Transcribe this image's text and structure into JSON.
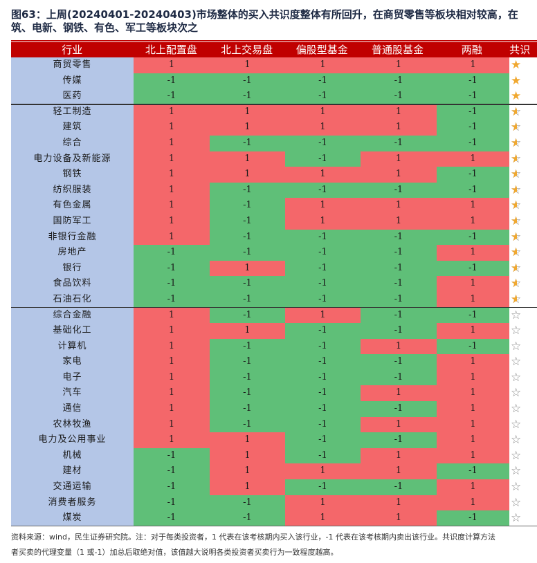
{
  "title": {
    "line1": "图63：上周(20240401-20240403)市场整体的买入共识度整体有所回升，在商贸零售等板块相对较高，在",
    "line2": "筑、电新、钢铁、有色、军工等板块次之"
  },
  "headers": [
    "行业",
    "北上配置盘",
    "北上交易盘",
    "偏股型基金",
    "普通股基金",
    "两融",
    "共识"
  ],
  "rows": [
    {
      "name": "商贸零售",
      "values": [
        "1",
        "1",
        "1",
        "1",
        "1"
      ],
      "star": "full"
    },
    {
      "name": "传媒",
      "values": [
        "-1",
        "-1",
        "-1",
        "-1",
        "-1"
      ],
      "star": "full"
    },
    {
      "name": "医药",
      "values": [
        "-1",
        "-1",
        "-1",
        "-1",
        "-1"
      ],
      "star": "full"
    },
    {
      "name": "轻工制造",
      "values": [
        "1",
        "1",
        "1",
        "1",
        "-1"
      ],
      "star": "half"
    },
    {
      "name": "建筑",
      "values": [
        "1",
        "1",
        "1",
        "1",
        "-1"
      ],
      "star": "half"
    },
    {
      "name": "综合",
      "values": [
        "1",
        "-1",
        "-1",
        "-1",
        "-1"
      ],
      "star": "half"
    },
    {
      "name": "电力设备及新能源",
      "values": [
        "1",
        "1",
        "-1",
        "1",
        "1"
      ],
      "star": "half"
    },
    {
      "name": "钢铁",
      "values": [
        "1",
        "1",
        "1",
        "1",
        "-1"
      ],
      "star": "half"
    },
    {
      "name": "纺织服装",
      "values": [
        "1",
        "-1",
        "-1",
        "-1",
        "-1"
      ],
      "star": "half"
    },
    {
      "name": "有色金属",
      "values": [
        "1",
        "-1",
        "1",
        "1",
        "1"
      ],
      "star": "half"
    },
    {
      "name": "国防军工",
      "values": [
        "1",
        "-1",
        "1",
        "1",
        "1"
      ],
      "star": "half"
    },
    {
      "name": "非银行金融",
      "values": [
        "1",
        "-1",
        "-1",
        "-1",
        "-1"
      ],
      "star": "half"
    },
    {
      "name": "房地产",
      "values": [
        "-1",
        "-1",
        "-1",
        "-1",
        "1"
      ],
      "star": "half"
    },
    {
      "name": "银行",
      "values": [
        "-1",
        "1",
        "-1",
        "-1",
        "-1"
      ],
      "star": "half"
    },
    {
      "name": "食品饮料",
      "values": [
        "-1",
        "-1",
        "-1",
        "-1",
        "1"
      ],
      "star": "half"
    },
    {
      "name": "石油石化",
      "values": [
        "-1",
        "-1",
        "-1",
        "-1",
        "1"
      ],
      "star": "half"
    },
    {
      "name": "综合金融",
      "values": [
        "1",
        "-1",
        "1",
        "-1",
        "-1"
      ],
      "star": "empty"
    },
    {
      "name": "基础化工",
      "values": [
        "1",
        "1",
        "-1",
        "-1",
        "1"
      ],
      "star": "empty"
    },
    {
      "name": "计算机",
      "values": [
        "1",
        "-1",
        "-1",
        "1",
        "-1"
      ],
      "star": "empty"
    },
    {
      "name": "家电",
      "values": [
        "1",
        "-1",
        "-1",
        "-1",
        "1"
      ],
      "star": "empty"
    },
    {
      "name": "电子",
      "values": [
        "1",
        "-1",
        "-1",
        "-1",
        "1"
      ],
      "star": "empty"
    },
    {
      "name": "汽车",
      "values": [
        "1",
        "-1",
        "-1",
        "1",
        "1"
      ],
      "star": "empty"
    },
    {
      "name": "通信",
      "values": [
        "1",
        "-1",
        "-1",
        "-1",
        "1"
      ],
      "star": "empty"
    },
    {
      "name": "农林牧渔",
      "values": [
        "1",
        "-1",
        "-1",
        "1",
        "1"
      ],
      "star": "empty"
    },
    {
      "name": "电力及公用事业",
      "values": [
        "1",
        "1",
        "-1",
        "-1",
        "1"
      ],
      "star": "empty"
    },
    {
      "name": "机械",
      "values": [
        "-1",
        "1",
        "-1",
        "1",
        "1"
      ],
      "star": "empty"
    },
    {
      "name": "建材",
      "values": [
        "-1",
        "1",
        "1",
        "1",
        "-1"
      ],
      "star": "empty"
    },
    {
      "name": "交通运输",
      "values": [
        "-1",
        "1",
        "-1",
        "-1",
        "1"
      ],
      "star": "empty"
    },
    {
      "name": "消费者服务",
      "values": [
        "-1",
        "-1",
        "1",
        "1",
        "1"
      ],
      "star": "empty"
    },
    {
      "name": "煤炭",
      "values": [
        "-1",
        "-1",
        "1",
        "1",
        "-1"
      ],
      "star": "empty"
    }
  ],
  "icons": {
    "full": "star-full-icon",
    "half": "star-half-icon",
    "empty": "star-empty-icon"
  },
  "colors": {
    "positive": "#f4676a",
    "negative": "#5fbf78",
    "industry": "#b4c6e7",
    "header": "#c00000"
  },
  "footer": {
    "line1": "资料来源：wind，民生证券研究院。注：对于每类投资者，1 代表在该考核期内买入该行业，-1 代表在该考核期内卖出该行业。共识度计算方法",
    "line2": "者买卖的代理变量（1 或-1）加总后取绝对值，该值越大说明各类投资者买卖行为一致程度越高。"
  }
}
